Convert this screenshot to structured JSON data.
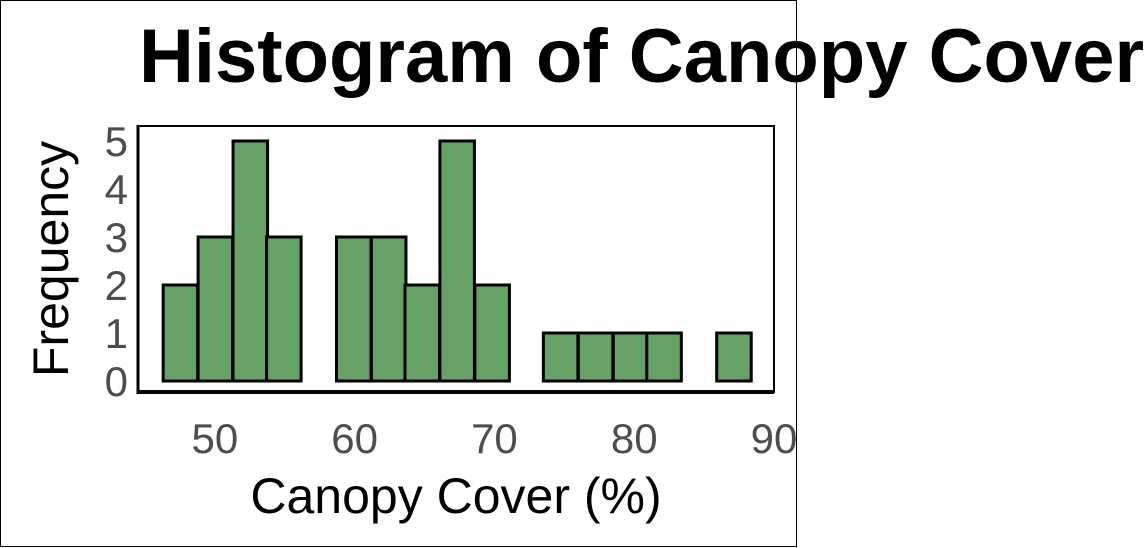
{
  "chart_data": {
    "type": "bar",
    "title": "Histogram of Canopy Cover",
    "xlabel": "Canopy Cover (%)",
    "ylabel": "Frequency",
    "xlim": [
      44.5,
      90
    ],
    "ylim": [
      0,
      5.2
    ],
    "xticks": [
      50,
      60,
      70,
      80,
      90
    ],
    "yticks": [
      0,
      1,
      2,
      3,
      4,
      5
    ],
    "bin_width": 2.47,
    "bins": [
      {
        "start": 46.3,
        "count": 2
      },
      {
        "start": 48.8,
        "count": 3
      },
      {
        "start": 51.3,
        "count": 5
      },
      {
        "start": 53.7,
        "count": 3
      },
      {
        "start": 56.2,
        "count": 0
      },
      {
        "start": 58.7,
        "count": 3
      },
      {
        "start": 61.2,
        "count": 3
      },
      {
        "start": 63.6,
        "count": 2
      },
      {
        "start": 66.1,
        "count": 5
      },
      {
        "start": 68.6,
        "count": 2
      },
      {
        "start": 71.0,
        "count": 0
      },
      {
        "start": 73.5,
        "count": 1
      },
      {
        "start": 76.0,
        "count": 1
      },
      {
        "start": 78.5,
        "count": 1
      },
      {
        "start": 80.9,
        "count": 1
      },
      {
        "start": 83.4,
        "count": 0
      },
      {
        "start": 85.9,
        "count": 1
      }
    ],
    "bar_color": "#66a266",
    "edge_color": "#000000",
    "grid": false
  }
}
